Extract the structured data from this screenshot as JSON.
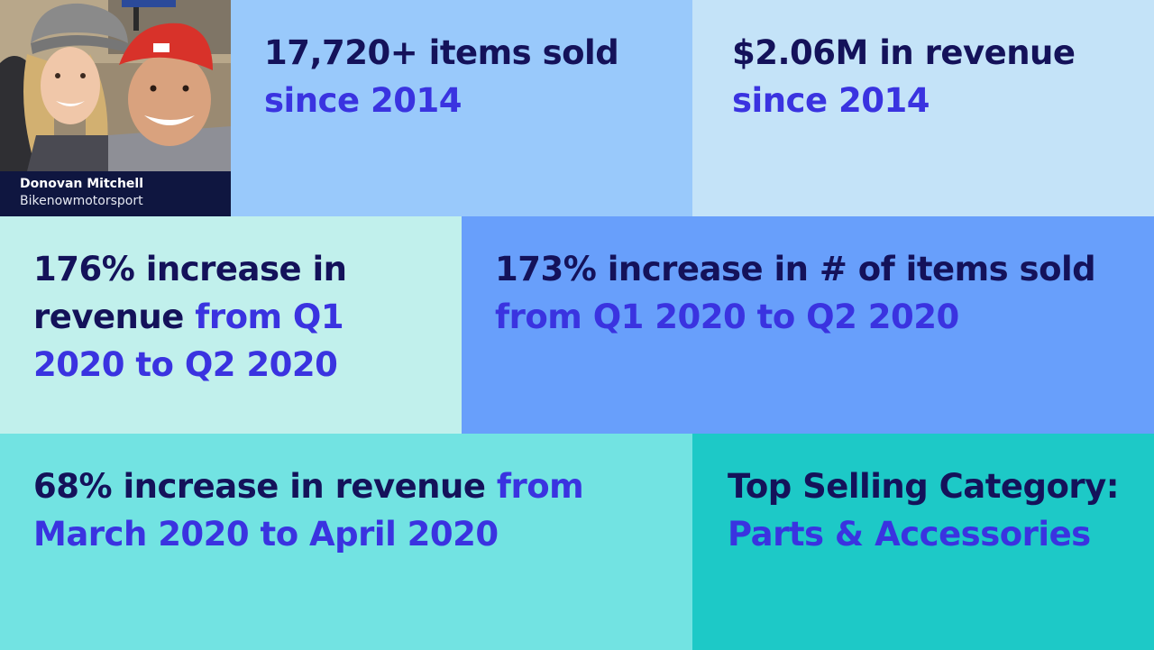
{
  "profile": {
    "name": "Donovan Mitchell",
    "store": "Bikenowmotorsport"
  },
  "stats": {
    "items_sold": {
      "main": "17,720+ items sold",
      "highlight": "since 2014"
    },
    "revenue": {
      "main": "$2.06M in revenue",
      "highlight": "since 2014"
    },
    "quarter_revenue": {
      "main": "176% increase in revenue",
      "highlight": "from Q1 2020 to Q2 2020"
    },
    "quarter_items": {
      "main": "173% increase in # of items sold",
      "highlight": "from Q1 2020 to Q2 2020"
    },
    "month_revenue": {
      "main": "68% increase in revenue",
      "highlight": "from March 2020 to April 2020"
    },
    "top_category": {
      "main": "Top Selling Category:",
      "highlight": "Parts & Accessories"
    }
  },
  "colors": {
    "dark_text": "#14125a",
    "highlight_text": "#3a33e0",
    "tile_items": "#99c9fb",
    "tile_revenue": "#c4e3f8",
    "tile_quarter_revenue": "#c1f0ec",
    "tile_quarter_items": "#689ffb",
    "tile_month": "#72e3e2",
    "tile_category": "#1dc9c7",
    "caption_bg": "#0f1640"
  },
  "icons": {
    "photo": "seller-photo"
  }
}
